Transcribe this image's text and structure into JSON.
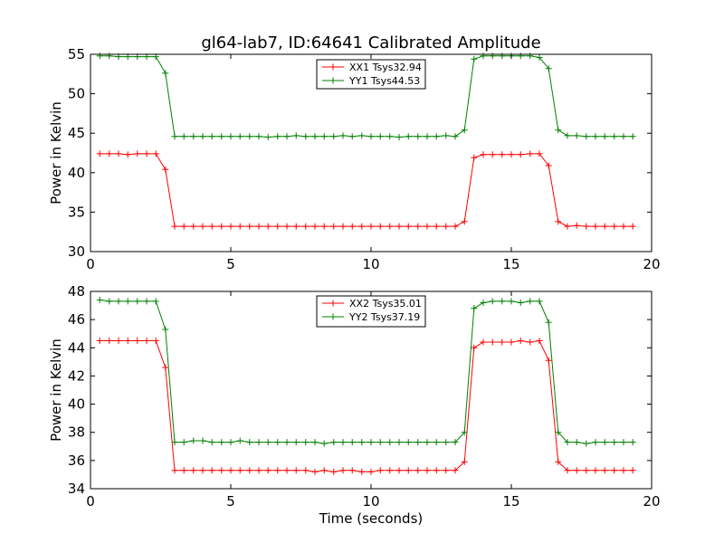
{
  "title": "gl64-lab7, ID:64641 Calibrated Amplitude",
  "xlabel": "Time (seconds)",
  "colors": {
    "red": "#ff0000",
    "green": "#008000"
  },
  "chart_data": [
    {
      "type": "line",
      "ylabel": "Power in Kelvin",
      "xlim": [
        0,
        20
      ],
      "ylim": [
        30,
        55
      ],
      "xticks": [
        "0",
        "5",
        "10",
        "15",
        "20"
      ],
      "xtick_values": [
        0,
        5,
        10,
        15,
        20
      ],
      "yticks": [
        "30",
        "35",
        "40",
        "45",
        "50",
        "55"
      ],
      "ytick_values": [
        30,
        35,
        40,
        45,
        50,
        55
      ],
      "legend_position": "top-center",
      "series": [
        {
          "name": "XX1 Tsys32.94",
          "color": "red",
          "x": [
            0.33,
            0.67,
            1.0,
            1.33,
            1.67,
            2.0,
            2.33,
            2.67,
            3.0,
            3.33,
            3.67,
            4.0,
            4.33,
            4.67,
            5.0,
            5.33,
            5.67,
            6.0,
            6.33,
            6.67,
            7.0,
            7.33,
            7.67,
            8.0,
            8.33,
            8.67,
            9.0,
            9.33,
            9.67,
            10.0,
            10.33,
            10.67,
            11.0,
            11.33,
            11.67,
            12.0,
            12.33,
            12.67,
            13.0,
            13.33,
            13.67,
            14.0,
            14.33,
            14.67,
            15.0,
            15.33,
            15.67,
            16.0,
            16.33,
            16.67,
            17.0,
            17.33,
            17.67,
            18.0,
            18.33,
            18.67,
            19.0,
            19.33
          ],
          "y": [
            42.4,
            42.4,
            42.4,
            42.3,
            42.4,
            42.4,
            42.4,
            40.4,
            33.2,
            33.2,
            33.2,
            33.2,
            33.2,
            33.2,
            33.2,
            33.2,
            33.2,
            33.2,
            33.2,
            33.2,
            33.2,
            33.2,
            33.2,
            33.2,
            33.2,
            33.2,
            33.2,
            33.2,
            33.2,
            33.2,
            33.2,
            33.2,
            33.2,
            33.2,
            33.2,
            33.2,
            33.2,
            33.2,
            33.2,
            33.8,
            41.9,
            42.3,
            42.3,
            42.3,
            42.3,
            42.3,
            42.4,
            42.4,
            40.9,
            33.8,
            33.2,
            33.3,
            33.2,
            33.2,
            33.2,
            33.2,
            33.2,
            33.2
          ]
        },
        {
          "name": "YY1 Tsys44.53",
          "color": "green",
          "x": [
            0.33,
            0.67,
            1.0,
            1.33,
            1.67,
            2.0,
            2.33,
            2.67,
            3.0,
            3.33,
            3.67,
            4.0,
            4.33,
            4.67,
            5.0,
            5.33,
            5.67,
            6.0,
            6.33,
            6.67,
            7.0,
            7.33,
            7.67,
            8.0,
            8.33,
            8.67,
            9.0,
            9.33,
            9.67,
            10.0,
            10.33,
            10.67,
            11.0,
            11.33,
            11.67,
            12.0,
            12.33,
            12.67,
            13.0,
            13.33,
            13.67,
            14.0,
            14.33,
            14.67,
            15.0,
            15.33,
            15.67,
            16.0,
            16.33,
            16.67,
            17.0,
            17.33,
            17.67,
            18.0,
            18.33,
            18.67,
            19.0,
            19.33
          ],
          "y": [
            54.8,
            54.8,
            54.7,
            54.7,
            54.7,
            54.7,
            54.7,
            52.6,
            44.6,
            44.6,
            44.6,
            44.6,
            44.6,
            44.6,
            44.6,
            44.6,
            44.6,
            44.6,
            44.5,
            44.6,
            44.6,
            44.7,
            44.6,
            44.6,
            44.6,
            44.6,
            44.7,
            44.6,
            44.7,
            44.6,
            44.6,
            44.6,
            44.5,
            44.6,
            44.6,
            44.6,
            44.6,
            44.7,
            44.6,
            45.4,
            54.4,
            54.8,
            54.8,
            54.8,
            54.8,
            54.8,
            54.8,
            54.6,
            53.2,
            45.4,
            44.7,
            44.7,
            44.6,
            44.6,
            44.6,
            44.6,
            44.6,
            44.6
          ]
        }
      ]
    },
    {
      "type": "line",
      "ylabel": "Power in Kelvin",
      "xlabel": "Time (seconds)",
      "xlim": [
        0,
        20
      ],
      "ylim": [
        34,
        48
      ],
      "xticks": [
        "0",
        "5",
        "10",
        "15",
        "20"
      ],
      "xtick_values": [
        0,
        5,
        10,
        15,
        20
      ],
      "yticks": [
        "34",
        "36",
        "38",
        "40",
        "42",
        "44",
        "46",
        "48"
      ],
      "ytick_values": [
        34,
        36,
        38,
        40,
        42,
        44,
        46,
        48
      ],
      "legend_position": "top-center",
      "series": [
        {
          "name": "XX2 Tsys35.01",
          "color": "red",
          "x": [
            0.33,
            0.67,
            1.0,
            1.33,
            1.67,
            2.0,
            2.33,
            2.67,
            3.0,
            3.33,
            3.67,
            4.0,
            4.33,
            4.67,
            5.0,
            5.33,
            5.67,
            6.0,
            6.33,
            6.67,
            7.0,
            7.33,
            7.67,
            8.0,
            8.33,
            8.67,
            9.0,
            9.33,
            9.67,
            10.0,
            10.33,
            10.67,
            11.0,
            11.33,
            11.67,
            12.0,
            12.33,
            12.67,
            13.0,
            13.33,
            13.67,
            14.0,
            14.33,
            14.67,
            15.0,
            15.33,
            15.67,
            16.0,
            16.33,
            16.67,
            17.0,
            17.33,
            17.67,
            18.0,
            18.33,
            18.67,
            19.0,
            19.33
          ],
          "y": [
            44.5,
            44.5,
            44.5,
            44.5,
            44.5,
            44.5,
            44.5,
            42.6,
            35.3,
            35.3,
            35.3,
            35.3,
            35.3,
            35.3,
            35.3,
            35.3,
            35.3,
            35.3,
            35.3,
            35.3,
            35.3,
            35.3,
            35.3,
            35.2,
            35.3,
            35.2,
            35.3,
            35.3,
            35.2,
            35.2,
            35.3,
            35.3,
            35.3,
            35.3,
            35.3,
            35.3,
            35.3,
            35.3,
            35.3,
            35.9,
            44.0,
            44.4,
            44.4,
            44.4,
            44.4,
            44.5,
            44.4,
            44.5,
            43.1,
            35.9,
            35.3,
            35.3,
            35.3,
            35.3,
            35.3,
            35.3,
            35.3,
            35.3
          ]
        },
        {
          "name": "YY2 Tsys37.19",
          "color": "green",
          "x": [
            0.33,
            0.67,
            1.0,
            1.33,
            1.67,
            2.0,
            2.33,
            2.67,
            3.0,
            3.33,
            3.67,
            4.0,
            4.33,
            4.67,
            5.0,
            5.33,
            5.67,
            6.0,
            6.33,
            6.67,
            7.0,
            7.33,
            7.67,
            8.0,
            8.33,
            8.67,
            9.0,
            9.33,
            9.67,
            10.0,
            10.33,
            10.67,
            11.0,
            11.33,
            11.67,
            12.0,
            12.33,
            12.67,
            13.0,
            13.33,
            13.67,
            14.0,
            14.33,
            14.67,
            15.0,
            15.33,
            15.67,
            16.0,
            16.33,
            16.67,
            17.0,
            17.33,
            17.67,
            18.0,
            18.33,
            18.67,
            19.0,
            19.33
          ],
          "y": [
            47.4,
            47.3,
            47.3,
            47.3,
            47.3,
            47.3,
            47.3,
            45.3,
            37.3,
            37.3,
            37.4,
            37.4,
            37.3,
            37.3,
            37.3,
            37.4,
            37.3,
            37.3,
            37.3,
            37.3,
            37.3,
            37.3,
            37.3,
            37.3,
            37.2,
            37.3,
            37.3,
            37.3,
            37.3,
            37.3,
            37.3,
            37.3,
            37.3,
            37.3,
            37.3,
            37.3,
            37.3,
            37.3,
            37.3,
            38.0,
            46.8,
            47.2,
            47.3,
            47.3,
            47.3,
            47.2,
            47.3,
            47.3,
            45.8,
            38.0,
            37.3,
            37.3,
            37.2,
            37.3,
            37.3,
            37.3,
            37.3,
            37.3
          ]
        }
      ]
    }
  ]
}
